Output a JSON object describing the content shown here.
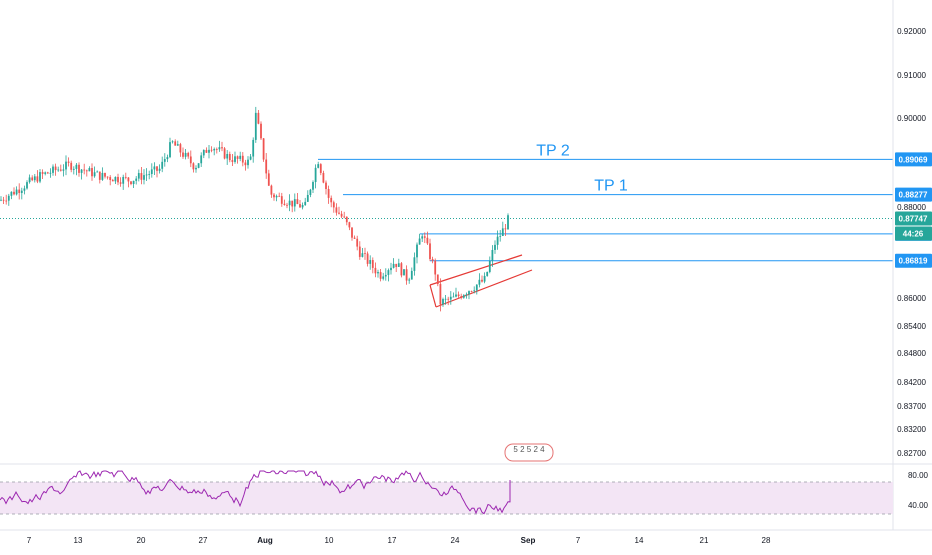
{
  "chart_data": {
    "type": "candlestick",
    "title": "",
    "price_axis": {
      "ticks": [
        "0.92000",
        "0.91000",
        "0.90000",
        "0.88000",
        "0.86000",
        "0.85400",
        "0.84800",
        "0.84200",
        "0.83700",
        "0.83200",
        "0.82700"
      ],
      "tick_values": [
        0.92,
        0.91,
        0.9,
        0.88,
        0.86,
        0.854,
        0.848,
        0.842,
        0.837,
        0.832,
        0.827
      ]
    },
    "time_axis": {
      "labels": [
        "7",
        "13",
        "20",
        "27",
        "Aug",
        "10",
        "17",
        "24",
        "Sep",
        "7",
        "14",
        "21",
        "28"
      ],
      "bold_labels": [
        "Aug",
        "Sep"
      ]
    },
    "levels": [
      {
        "label": "TP 2",
        "price_tag": "0.89069",
        "value": 0.89069,
        "color": "#2196f3"
      },
      {
        "label": "TP 1",
        "price_tag": "0.88277",
        "value": 0.88277,
        "color": "#2196f3"
      },
      {
        "label": "",
        "price_tag": "0.87408",
        "value": 0.87408,
        "color": "#2196f3"
      },
      {
        "label": "",
        "price_tag": "0.86819",
        "value": 0.86819,
        "color": "#2196f3"
      }
    ],
    "current_price": {
      "value_label": "0.87747",
      "countdown": "44:26",
      "color": "#26a69a"
    },
    "channel": {
      "color": "#e53935"
    },
    "colors": {
      "up": "#26a69a",
      "down": "#ef5350",
      "level": "#2196f3",
      "rsi": "#9c27b0"
    },
    "rsi": {
      "levels": [
        "80.00",
        "40.00"
      ],
      "band_color": "#f3e5f5"
    },
    "event_badge": {
      "text": "5 2 5 2 4"
    }
  }
}
